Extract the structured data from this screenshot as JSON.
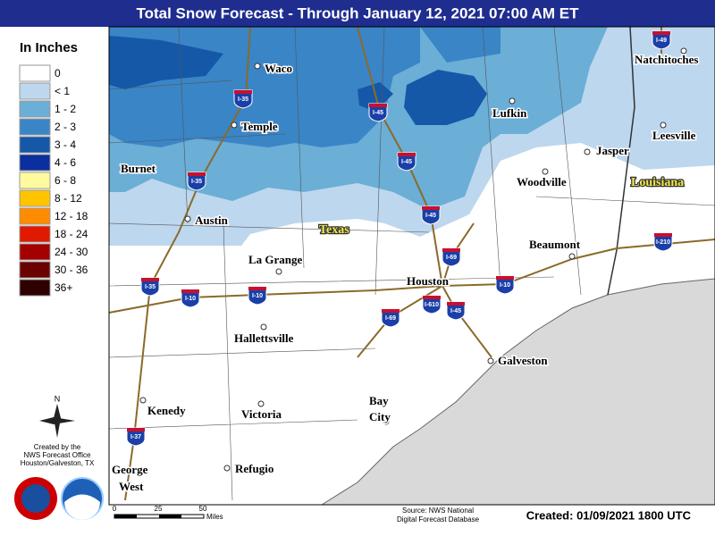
{
  "header": {
    "title": "Total Snow Forecast - Through January 12, 2021 07:00 AM ET"
  },
  "legend": {
    "title": "In Inches",
    "items": [
      {
        "label": "0",
        "color": "#ffffff"
      },
      {
        "label": "< 1",
        "color": "#bdd7ee"
      },
      {
        "label": "1 - 2",
        "color": "#6baed6"
      },
      {
        "label": "2 - 3",
        "color": "#3a85c6"
      },
      {
        "label": "3 - 4",
        "color": "#1558a8"
      },
      {
        "label": "4 - 6",
        "color": "#0b2f9e"
      },
      {
        "label": "6 - 8",
        "color": "#fffa9e"
      },
      {
        "label": "8 - 12",
        "color": "#ffc400"
      },
      {
        "label": "12 - 18",
        "color": "#ff8c00"
      },
      {
        "label": "18 - 24",
        "color": "#e01a00"
      },
      {
        "label": "24 - 30",
        "color": "#a30000"
      },
      {
        "label": "30 - 36",
        "color": "#6b0000"
      },
      {
        "label": "36+",
        "color": "#2e0000"
      }
    ]
  },
  "map": {
    "cities": [
      "Waco",
      "Temple",
      "Burnet",
      "Austin",
      "La Grange",
      "Hallettsville",
      "Kenedy",
      "Victoria",
      [
        "George",
        "West"
      ],
      "Refugio",
      [
        "Bay",
        "City"
      ],
      "Houston",
      "Galveston",
      "Beaumont",
      "Woodville",
      "Lufkin",
      "Jasper",
      "Leesville",
      "Natchitoches"
    ],
    "states": [
      "Texas",
      "Louisiana"
    ],
    "interstates": [
      "I-35",
      "I-35",
      "I-35",
      "I-45",
      "I-45",
      "I-45",
      "I-45",
      "I-10",
      "I-10",
      "I-10",
      "I-69",
      "I-69",
      "I-610",
      "I-37",
      "I-49",
      "I-210"
    ]
  },
  "credits": {
    "north": "N",
    "office": [
      "Created by the",
      "NWS Forecast Office",
      "Houston/Galveston, TX"
    ],
    "scale": [
      "0",
      "25",
      "50",
      "Miles"
    ],
    "source": [
      "Source: NWS National",
      "Digital Forecast Database"
    ],
    "created": "Created: 01/09/2021 1800 UTC"
  }
}
